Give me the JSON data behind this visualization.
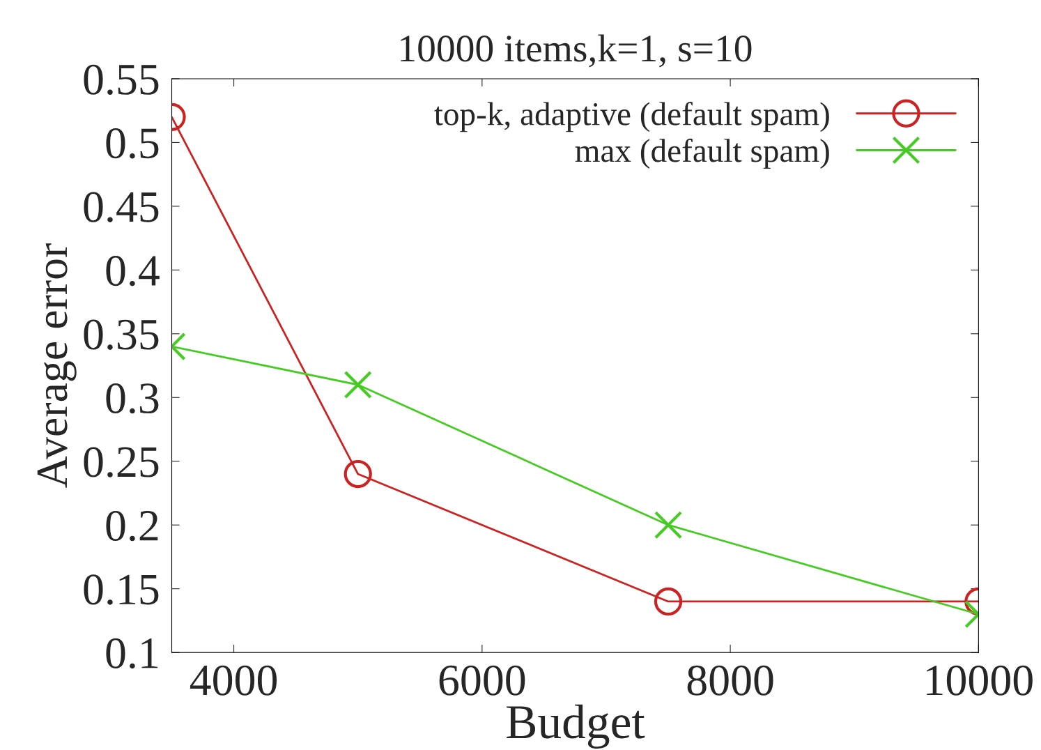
{
  "chart_data": {
    "type": "line",
    "title": "10000 items,k=1, s=10",
    "xlabel": "Budget",
    "ylabel": "Average error",
    "xlim": [
      3500,
      10000
    ],
    "xticks": [
      4000,
      6000,
      8000,
      10000
    ],
    "ylim": [
      0.1,
      0.55
    ],
    "yticks": [
      0.1,
      0.15,
      0.2,
      0.25,
      0.3,
      0.35,
      0.4,
      0.45,
      0.5,
      0.55
    ],
    "grid": false,
    "legend": "top right",
    "line_style": "solid",
    "series": [
      {
        "name": "top-k, adaptive (default spam)",
        "color": "#cc2222",
        "marker": "circle",
        "x": [
          3500,
          5000,
          7500,
          10000
        ],
        "values": [
          0.52,
          0.24,
          0.14,
          0.14
        ]
      },
      {
        "name": "max (default spam)",
        "color": "#44cc22",
        "marker": "cross",
        "x": [
          3500,
          5000,
          7500,
          10000
        ],
        "values": [
          0.34,
          0.31,
          0.2,
          0.13
        ]
      }
    ]
  }
}
